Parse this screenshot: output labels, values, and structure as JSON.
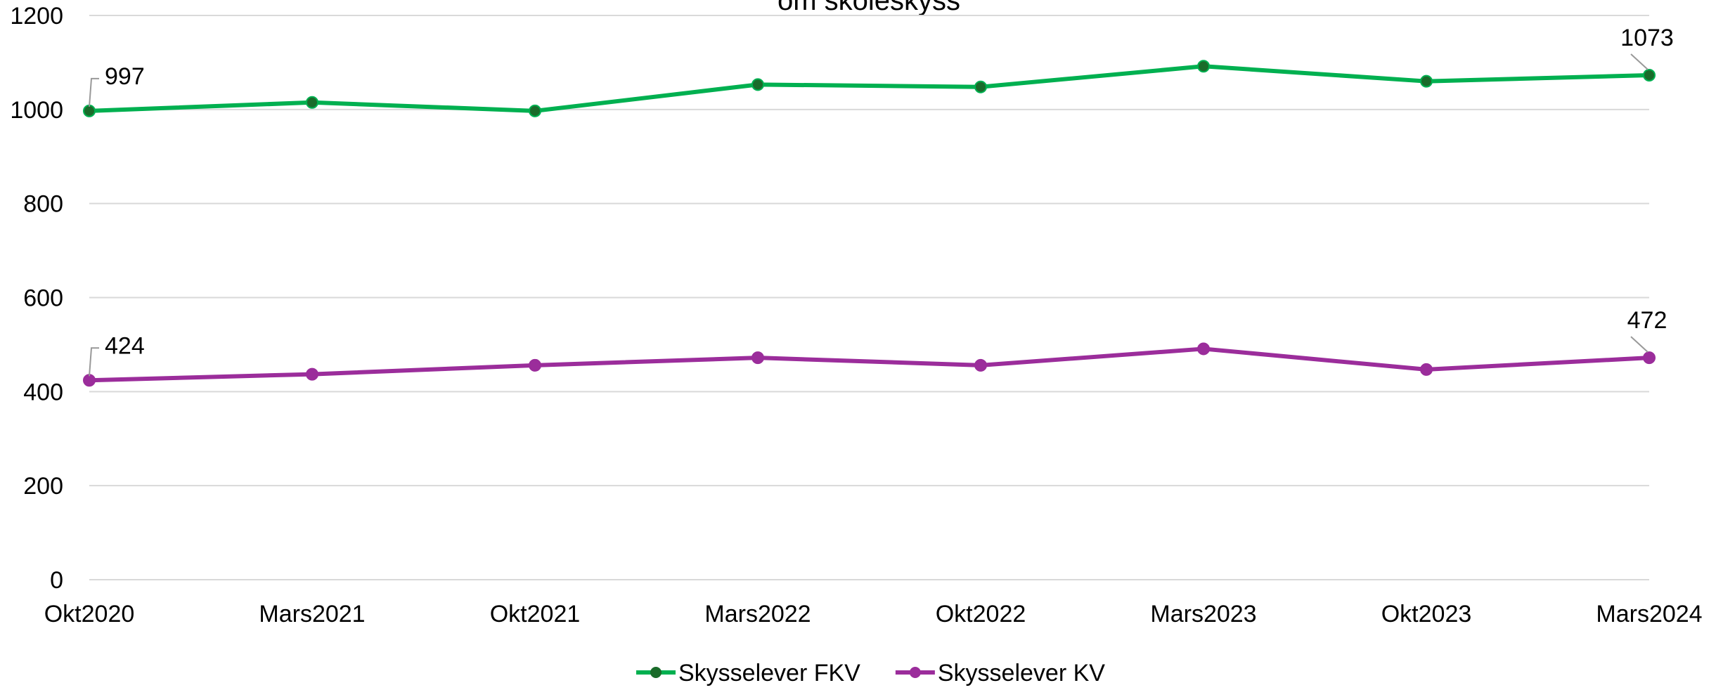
{
  "chart_data": {
    "type": "line",
    "title": "om skoleskyss",
    "categories": [
      "Okt2020",
      "Mars2021",
      "Okt2021",
      "Mars2022",
      "Okt2022",
      "Mars2023",
      "Okt2023",
      "Mars2024"
    ],
    "series": [
      {
        "name": "Skysselever FKV",
        "color": "#00b050",
        "marker_color": "#1a6b2a",
        "values": [
          997,
          1015,
          997,
          1053,
          1048,
          1092,
          1060,
          1073
        ],
        "value_labels": [
          "997",
          null,
          null,
          null,
          null,
          null,
          null,
          "1073"
        ]
      },
      {
        "name": "Skysselever KV",
        "color": "#9b2d9b",
        "marker_color": "#9b2d9b",
        "values": [
          424,
          437,
          456,
          472,
          456,
          491,
          447,
          472
        ],
        "value_labels": [
          "424",
          null,
          null,
          null,
          null,
          null,
          null,
          "472"
        ]
      }
    ],
    "ylim": [
      0,
      1200
    ],
    "yticks": [
      0,
      200,
      400,
      600,
      800,
      1000,
      1200
    ],
    "grid": true,
    "legend": "bottom"
  }
}
